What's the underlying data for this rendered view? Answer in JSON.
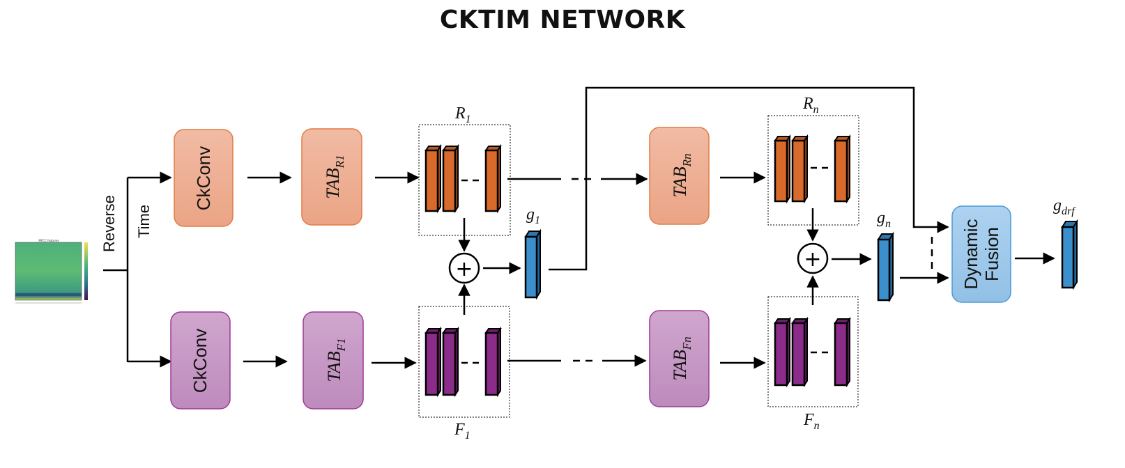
{
  "title": "CKTIM NETWORK",
  "input": {
    "spectrogram_title": "MFCC features",
    "branch_labels": {
      "reverse": "Reverse",
      "time": "Time"
    }
  },
  "reverse_branch": {
    "ckconv_label": "CkConv",
    "tab1": {
      "base": "TAB",
      "sub": "R1"
    },
    "tabn": {
      "base": "TAB",
      "sub": "Rn"
    },
    "stack1": {
      "base": "R",
      "sub": "1"
    },
    "stackn": {
      "base": "R",
      "sub": "n"
    }
  },
  "forward_branch": {
    "ckconv_label": "CkConv",
    "tab1": {
      "base": "TAB",
      "sub": "F1"
    },
    "tabn": {
      "base": "TAB",
      "sub": "Fn"
    },
    "stack1": {
      "base": "F",
      "sub": "1"
    },
    "stackn": {
      "base": "F",
      "sub": "n"
    }
  },
  "fusion": {
    "plus_symbol": "+",
    "g1": {
      "base": "g",
      "sub": "1"
    },
    "gn": {
      "base": "g",
      "sub": "n"
    },
    "dynamic_fusion_line1": "Dynamic",
    "dynamic_fusion_line2": "Fusion",
    "output": {
      "base": "g",
      "sub": "drf"
    }
  },
  "colors": {
    "reverse_box_fill": "#eeaf96",
    "reverse_box_stroke": "#e07c45",
    "reverse_bar": "#d86a2c",
    "forward_box_fill": "#c89ac6",
    "forward_box_stroke": "#9c3a98",
    "forward_bar": "#8c2c8a",
    "feature_bar": "#3a8fcc",
    "fusion_fill": "#9fc8ea",
    "fusion_stroke": "#4a9ad6"
  }
}
